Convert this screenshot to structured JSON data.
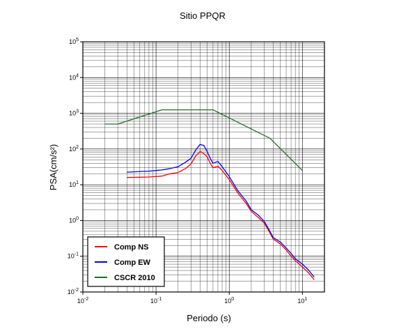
{
  "chart_data": {
    "type": "line",
    "title": "Sitio PPQR",
    "xlabel": "Periodo (s)",
    "ylabel": "PSA(cm/s²)",
    "xscale": "log",
    "yscale": "log",
    "xlim": [
      0.01,
      20
    ],
    "ylim": [
      0.01,
      100000
    ],
    "grid": true,
    "legend_position": "bottom-left",
    "x_ticks": [
      {
        "base": "10",
        "exp": "-2"
      },
      {
        "base": "10",
        "exp": "-1"
      },
      {
        "base": "10",
        "exp": "0"
      },
      {
        "base": "10",
        "exp": "1"
      }
    ],
    "y_ticks": [
      {
        "base": "10",
        "exp": "-2"
      },
      {
        "base": "10",
        "exp": "-1"
      },
      {
        "base": "10",
        "exp": "0"
      },
      {
        "base": "10",
        "exp": "1"
      },
      {
        "base": "10",
        "exp": "2"
      },
      {
        "base": "10",
        "exp": "3"
      },
      {
        "base": "10",
        "exp": "4"
      },
      {
        "base": "10",
        "exp": "5"
      }
    ],
    "series": [
      {
        "name": "Comp NS",
        "color": "#ff0000",
        "points": [
          [
            0.04,
            16
          ],
          [
            0.06,
            16.3
          ],
          [
            0.08,
            16.5
          ],
          [
            0.1,
            17
          ],
          [
            0.12,
            17.5
          ],
          [
            0.15,
            20
          ],
          [
            0.2,
            22
          ],
          [
            0.25,
            28
          ],
          [
            0.3,
            38
          ],
          [
            0.35,
            65
          ],
          [
            0.4,
            85
          ],
          [
            0.45,
            75
          ],
          [
            0.5,
            60
          ],
          [
            0.55,
            40
          ],
          [
            0.6,
            30
          ],
          [
            0.7,
            33
          ],
          [
            0.8,
            25
          ],
          [
            1.0,
            14
          ],
          [
            1.3,
            6
          ],
          [
            1.7,
            3
          ],
          [
            2.0,
            1.8
          ],
          [
            2.5,
            1.2
          ],
          [
            3.0,
            0.85
          ],
          [
            3.5,
            0.5
          ],
          [
            4.0,
            0.3
          ],
          [
            5.0,
            0.22
          ],
          [
            6.0,
            0.15
          ],
          [
            7.0,
            0.1
          ],
          [
            8.0,
            0.075
          ],
          [
            10.0,
            0.05
          ],
          [
            12.0,
            0.035
          ],
          [
            14.5,
            0.022
          ]
        ]
      },
      {
        "name": "Comp EW",
        "color": "#0000ff",
        "points": [
          [
            0.04,
            22.5
          ],
          [
            0.06,
            23.5
          ],
          [
            0.08,
            24
          ],
          [
            0.1,
            25
          ],
          [
            0.12,
            26
          ],
          [
            0.15,
            28
          ],
          [
            0.2,
            32
          ],
          [
            0.25,
            42
          ],
          [
            0.3,
            55
          ],
          [
            0.35,
            95
          ],
          [
            0.4,
            135
          ],
          [
            0.45,
            125
          ],
          [
            0.5,
            85
          ],
          [
            0.55,
            55
          ],
          [
            0.6,
            40
          ],
          [
            0.7,
            45
          ],
          [
            0.8,
            32
          ],
          [
            1.0,
            17
          ],
          [
            1.3,
            7
          ],
          [
            1.7,
            3.5
          ],
          [
            2.0,
            2.0
          ],
          [
            2.5,
            1.4
          ],
          [
            3.0,
            0.95
          ],
          [
            3.5,
            0.55
          ],
          [
            4.0,
            0.33
          ],
          [
            5.0,
            0.25
          ],
          [
            6.0,
            0.17
          ],
          [
            7.0,
            0.12
          ],
          [
            8.0,
            0.085
          ],
          [
            10.0,
            0.06
          ],
          [
            12.0,
            0.042
          ],
          [
            14.5,
            0.026
          ]
        ]
      },
      {
        "name": "CSCR 2010",
        "color": "#226b22",
        "points": [
          [
            0.02,
            500
          ],
          [
            0.03,
            500
          ],
          [
            0.12,
            1250
          ],
          [
            0.6,
            1250
          ],
          [
            3.6,
            200
          ],
          [
            10.0,
            25
          ]
        ]
      }
    ]
  }
}
